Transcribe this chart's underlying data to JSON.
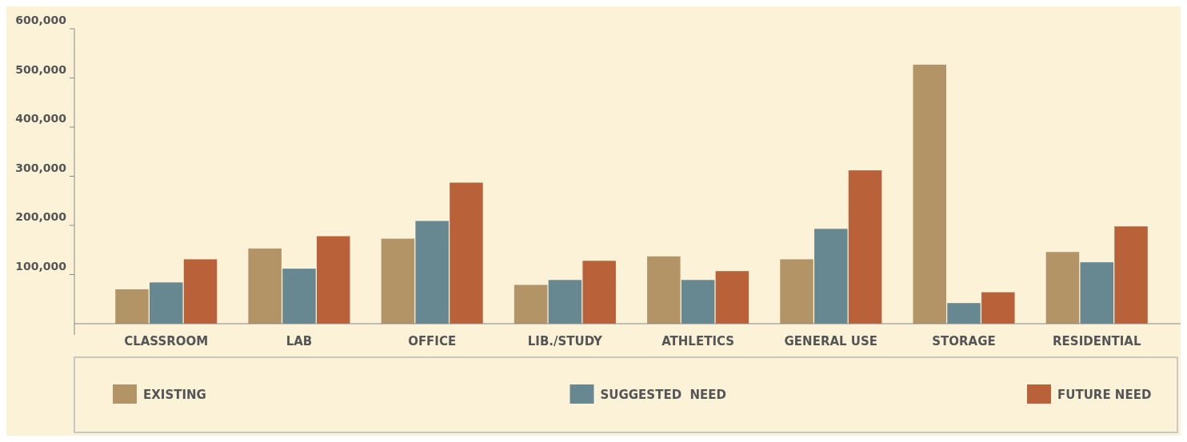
{
  "chart_data": {
    "type": "bar",
    "categories": [
      "CLASSROOM",
      "LAB",
      "OFFICE",
      "LIB./STUDY",
      "ATHLETICS",
      "GENERAL USE",
      "STORAGE",
      "RESIDENTIAL"
    ],
    "series": [
      {
        "name": "EXISTING",
        "color": "#b39466",
        "values": [
          70000,
          153000,
          173000,
          79000,
          137000,
          131000,
          527000,
          146000
        ]
      },
      {
        "name": "SUGGESTED  NEED",
        "color": "#688891",
        "values": [
          84000,
          112000,
          209000,
          89000,
          89000,
          193000,
          42000,
          125000
        ]
      },
      {
        "name": "FUTURE NEED",
        "color": "#b9623a",
        "values": [
          131000,
          178000,
          287000,
          128000,
          107000,
          312000,
          64000,
          198000
        ]
      }
    ],
    "ylim": [
      0,
      600000
    ],
    "yticks": [
      {
        "value": 100000,
        "label": "100,000"
      },
      {
        "value": 200000,
        "label": "200,000"
      },
      {
        "value": 300000,
        "label": "300,000"
      },
      {
        "value": 400000,
        "label": "400,000"
      },
      {
        "value": 500000,
        "label": "500,000"
      },
      {
        "value": 600000,
        "label": "600,000"
      }
    ],
    "grid": false,
    "legend": "bottom"
  }
}
